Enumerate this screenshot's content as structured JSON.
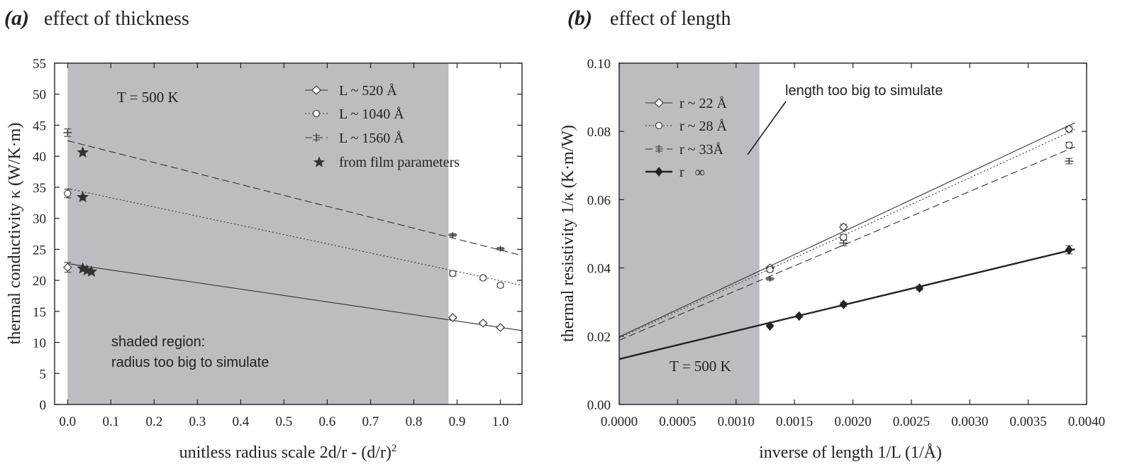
{
  "chart_data": [
    {
      "type": "line",
      "panel_letter": "(a)",
      "title": "effect of thickness",
      "xlabel_base": "unitless radius scale 2d/r - (d/r)",
      "xlabel_sup": "2",
      "ylabel": "thermal conductivity κ (W/K·m)",
      "xlim": [
        -0.03,
        1.05
      ],
      "ylim": [
        0,
        55
      ],
      "xticks": [
        "0.0",
        "0.1",
        "0.2",
        "0.3",
        "0.4",
        "0.5",
        "0.6",
        "0.7",
        "0.8",
        "0.9",
        "1.0"
      ],
      "xtick_values": [
        0,
        0.1,
        0.2,
        0.3,
        0.4,
        0.5,
        0.6,
        0.7,
        0.8,
        0.9,
        1.0
      ],
      "yticks": [
        "0",
        "5",
        "10",
        "15",
        "20",
        "25",
        "30",
        "35",
        "40",
        "45",
        "50",
        "55"
      ],
      "ytick_values": [
        0,
        5,
        10,
        15,
        20,
        25,
        30,
        35,
        40,
        45,
        50,
        55
      ],
      "shaded_region": [
        0,
        0.88
      ],
      "annotations": [
        "T = 500 K",
        "shaded region:",
        "radius too big to simulate"
      ],
      "series": [
        {
          "name": "L ~ 520 Å",
          "marker": "diamond",
          "dash": "solid",
          "x": [
            0.0,
            0.89,
            0.96,
            1.0
          ],
          "y": [
            22.1,
            14.0,
            13.1,
            12.4
          ],
          "err": [
            0.8,
            0.2,
            0.2,
            0.2
          ],
          "fit": [
            [
              0,
              22.7
            ],
            [
              1.05,
              11.9
            ]
          ]
        },
        {
          "name": "L ~ 1040 Å",
          "marker": "circle",
          "dash": "dotted",
          "x": [
            0.0,
            0.89,
            0.96,
            1.0
          ],
          "y": [
            34.0,
            21.1,
            20.4,
            19.2
          ],
          "err": [
            0.7,
            0.4,
            0.3,
            0.3
          ],
          "fit": [
            [
              0,
              34.8
            ],
            [
              1.05,
              19.2
            ]
          ]
        },
        {
          "name": "L ~ 1560 Å",
          "marker": "plus",
          "dash": "dashed",
          "x": [
            0.0,
            0.89,
            1.0
          ],
          "y": [
            43.8,
            27.3,
            25.1
          ],
          "err": [
            0.6,
            0.2,
            0.2
          ],
          "fit": [
            [
              0,
              42.5
            ],
            [
              1.05,
              24.0
            ]
          ]
        },
        {
          "name": "from film parameters",
          "marker": "star",
          "dash": "none",
          "x": [
            0.035,
            0.035,
            0.035,
            0.045,
            0.055
          ],
          "y": [
            40.6,
            33.4,
            21.9,
            21.6,
            21.4
          ],
          "err": []
        }
      ]
    },
    {
      "type": "line",
      "panel_letter": "(b)",
      "title": "effect of length",
      "xlabel": "inverse of length 1/L (1/Å)",
      "ylabel": "thermal resistivity 1/κ (K·m/W)",
      "xlim": [
        0,
        0.004
      ],
      "ylim": [
        0,
        0.1
      ],
      "xticks": [
        "0.0000",
        "0.0005",
        "0.0010",
        "0.0015",
        "0.0020",
        "0.0025",
        "0.0030",
        "0.0035",
        "0.0040"
      ],
      "xtick_values": [
        0,
        0.0005,
        0.001,
        0.0015,
        0.002,
        0.0025,
        0.003,
        0.0035,
        0.004
      ],
      "yticks": [
        "0.00",
        "0.02",
        "0.04",
        "0.06",
        "0.08",
        "0.10"
      ],
      "ytick_values": [
        0,
        0.02,
        0.04,
        0.06,
        0.08,
        0.1
      ],
      "shaded_region": [
        0,
        0.0012
      ],
      "annotations": [
        "length too big to simulate",
        "T = 500 K"
      ],
      "series": [
        {
          "name": "r ~ 22 Å",
          "marker": "diamond",
          "dash": "solid",
          "x": [
            0.00129,
            0.00192,
            0.00385
          ],
          "y": [
            0.04,
            0.052,
            0.0807
          ],
          "err": [
            0.0005,
            0.0008,
            0.0008
          ],
          "fit": [
            [
              0,
              0.0198
            ],
            [
              0.0039,
              0.0825
            ]
          ]
        },
        {
          "name": "r ~ 28 Å",
          "marker": "circle",
          "dash": "dotted",
          "x": [
            0.00129,
            0.00192,
            0.00385
          ],
          "y": [
            0.0395,
            0.049,
            0.076
          ],
          "err": [
            0.0005,
            0.0008,
            0.0008
          ],
          "fit": [
            [
              0,
              0.0195
            ],
            [
              0.0039,
              0.0805
            ]
          ]
        },
        {
          "name": "r ~ 33Å",
          "marker": "plus",
          "dash": "dashed",
          "x": [
            0.00129,
            0.00192,
            0.00385
          ],
          "y": [
            0.0368,
            0.0473,
            0.0713
          ],
          "err": [
            0.0004,
            0.0008,
            0.0008
          ],
          "fit": [
            [
              0,
              0.0188
            ],
            [
              0.0039,
              0.0755
            ]
          ]
        },
        {
          "name": "r   ∞",
          "marker": "filled-diamond",
          "dash": "bold",
          "x": [
            0.00129,
            0.00154,
            0.00192,
            0.00257,
            0.00385
          ],
          "y": [
            0.023,
            0.0259,
            0.0293,
            0.0341,
            0.0453
          ],
          "err": [
            0.0003,
            0.0004,
            0.0006,
            0.0006,
            0.0012
          ],
          "fit": [
            [
              0,
              0.0133
            ],
            [
              0.0039,
              0.0455
            ]
          ]
        }
      ]
    }
  ],
  "colors": {
    "shade": "#bcbdc0",
    "ink": "#333333",
    "axis": "#222222"
  }
}
